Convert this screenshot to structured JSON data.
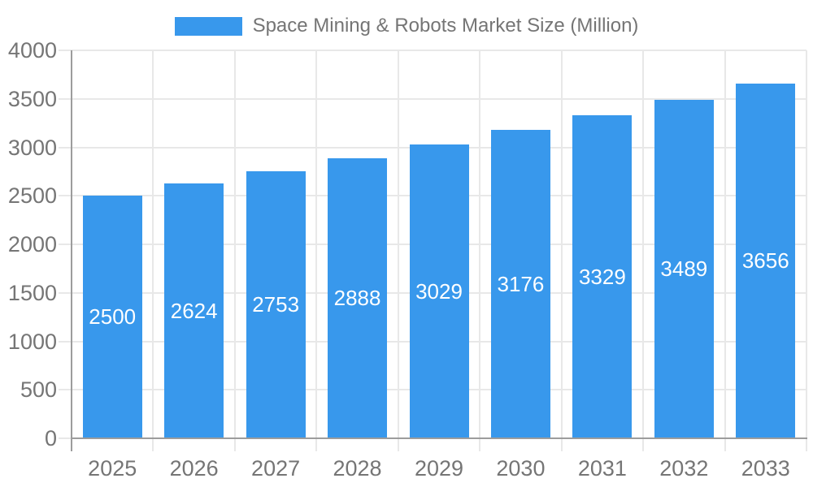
{
  "legend": {
    "label": "Space Mining & Robots Market Size (Million)",
    "position": "top-center"
  },
  "chart_data": {
    "type": "bar",
    "title": "Space Mining & Robots Market Size (Million)",
    "categories": [
      "2025",
      "2026",
      "2027",
      "2028",
      "2029",
      "2030",
      "2031",
      "2032",
      "2033"
    ],
    "values": [
      2500,
      2624,
      2753,
      2888,
      3029,
      3176,
      3329,
      3489,
      3656
    ],
    "value_labels_inside_bars": true,
    "xlabel": "",
    "ylabel": "",
    "ylim": [
      0,
      4000
    ],
    "yticks": [
      0,
      500,
      1000,
      1500,
      2000,
      2500,
      3000,
      3500,
      4000
    ],
    "grid": true,
    "legend_position": "top-center"
  },
  "colors": {
    "bar": "#3898ec",
    "axis_line": "#9c9c9c",
    "grid_line": "#e8e8e8",
    "axis_text": "#757575",
    "value_label": "#ffffff",
    "background": "#ffffff"
  }
}
